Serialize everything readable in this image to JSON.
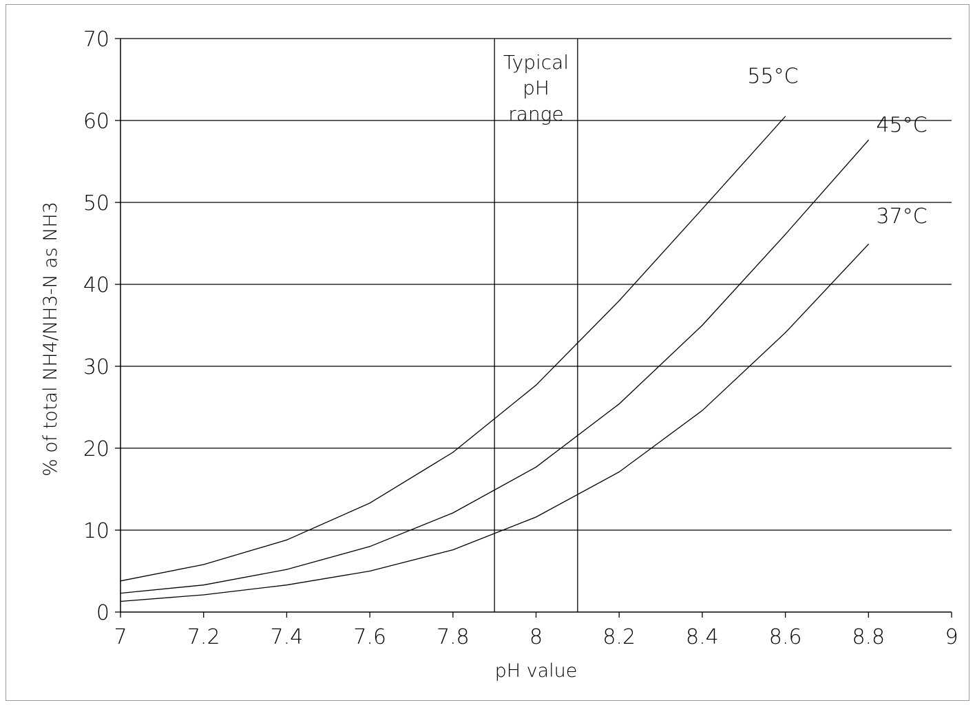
{
  "chart_data": {
    "type": "line",
    "title": "",
    "xlabel": "pH value",
    "ylabel": "% of total NH4/NH3-N as NH3",
    "xlim": [
      7,
      9
    ],
    "ylim": [
      0,
      70
    ],
    "x_ticks": [
      7,
      7.2,
      7.4,
      7.6,
      7.8,
      8,
      8.2,
      8.4,
      8.6,
      8.8,
      9
    ],
    "x_tick_labels": [
      "7",
      "7.2",
      "7.4",
      "7.6",
      "7.8",
      "8",
      "8.2",
      "8.4",
      "8.6",
      "8.8",
      "9"
    ],
    "y_ticks": [
      0,
      10,
      20,
      30,
      40,
      50,
      60,
      70
    ],
    "y_tick_labels": [
      "0",
      "10",
      "20",
      "30",
      "40",
      "50",
      "60",
      "70"
    ],
    "grid": "horizontal",
    "legend": "none",
    "line_color": "#000000",
    "series": [
      {
        "name": "55°C",
        "x": [
          7,
          7.2,
          7.4,
          7.6,
          7.8,
          8,
          8.2,
          8.4,
          8.6
        ],
        "values": [
          3.8,
          5.8,
          8.8,
          13.3,
          19.5,
          27.7,
          38.0,
          49.2,
          60.5
        ]
      },
      {
        "name": "45°C",
        "x": [
          7,
          7.2,
          7.4,
          7.6,
          7.8,
          8,
          8.2,
          8.4,
          8.6,
          8.8
        ],
        "values": [
          2.3,
          3.3,
          5.2,
          8.0,
          12.1,
          17.7,
          25.4,
          35.0,
          46.1,
          57.6
        ]
      },
      {
        "name": "37°C",
        "x": [
          7,
          7.2,
          7.4,
          7.6,
          7.8,
          8,
          8.2,
          8.4,
          8.6,
          8.8
        ],
        "values": [
          1.3,
          2.1,
          3.3,
          5.0,
          7.6,
          11.6,
          17.1,
          24.6,
          34.1,
          44.9
        ]
      }
    ],
    "vertical_lines": [
      7.9,
      8.1
    ],
    "annotations": [
      {
        "text": "Typical",
        "x": 8.0,
        "y": 66.3
      },
      {
        "text": "pH",
        "x": 8.0,
        "y": 63.2
      },
      {
        "text": "range",
        "x": 8.0,
        "y": 60.0
      }
    ],
    "series_labels": [
      {
        "text": "55°C",
        "x": 8.57,
        "y": 64.6
      },
      {
        "text": "45°C",
        "x": 8.88,
        "y": 58.6
      },
      {
        "text": "37°C",
        "x": 8.88,
        "y": 47.5
      }
    ]
  }
}
